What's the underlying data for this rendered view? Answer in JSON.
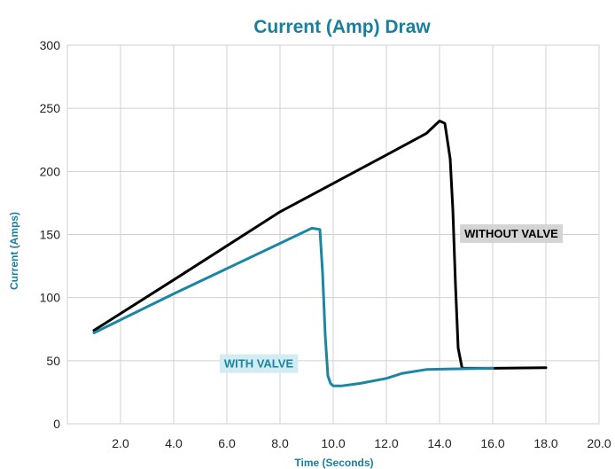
{
  "chart_data": {
    "type": "line",
    "title": "Current (Amp) Draw",
    "xlabel": "Time (Seconds)",
    "ylabel": "Current (Amps)",
    "xlim": [
      0,
      20
    ],
    "ylim": [
      0,
      300
    ],
    "x_ticks": [
      2,
      4,
      6,
      8,
      10,
      12,
      14,
      16,
      18,
      20
    ],
    "x_tick_labels": [
      "2.0",
      "4.0",
      "6.0",
      "8.0",
      "10.0",
      "12.0",
      "14.0",
      "16.0",
      "18.0",
      "20.0"
    ],
    "y_ticks": [
      0,
      50,
      100,
      150,
      200,
      250,
      300
    ],
    "y_tick_labels": [
      "0",
      "50",
      "100",
      "150",
      "200",
      "250",
      "300"
    ],
    "grid": true,
    "colors": {
      "title": "#1a7f9c",
      "axis_label": "#1a7f9c",
      "grid": "#d0d0d0",
      "without_valve": "#000000",
      "with_valve": "#1a86a4",
      "without_valve_label_bg": "#d4d4d4",
      "with_valve_label_bg": "#d2ecf2"
    },
    "series": [
      {
        "name": "WITHOUT VALVE",
        "x": [
          1.0,
          4.0,
          8.0,
          12.0,
          13.5,
          13.8,
          14.0,
          14.2,
          14.4,
          14.5,
          14.6,
          14.7,
          14.85,
          16.0,
          18.0
        ],
        "y": [
          74,
          114,
          168,
          213,
          230,
          236,
          240,
          238,
          210,
          170,
          110,
          60,
          44,
          44,
          44.5
        ]
      },
      {
        "name": "WITH VALVE",
        "x": [
          1.0,
          4.0,
          8.0,
          9.0,
          9.2,
          9.5,
          9.6,
          9.7,
          9.8,
          9.9,
          10.0,
          10.3,
          11.0,
          12.0,
          12.6,
          13.5,
          14.5,
          16.0
        ],
        "y": [
          72,
          103,
          143,
          153,
          155,
          154,
          120,
          70,
          38,
          32,
          30,
          30,
          32,
          36,
          40,
          43,
          43.5,
          44
        ]
      }
    ],
    "annotations": [
      {
        "text": "WITHOUT VALVE",
        "series": "WITHOUT VALVE",
        "x": 16.7,
        "y": 151
      },
      {
        "text": "WITH VALVE",
        "series": "WITH VALVE",
        "x": 7.2,
        "y": 48
      }
    ]
  }
}
